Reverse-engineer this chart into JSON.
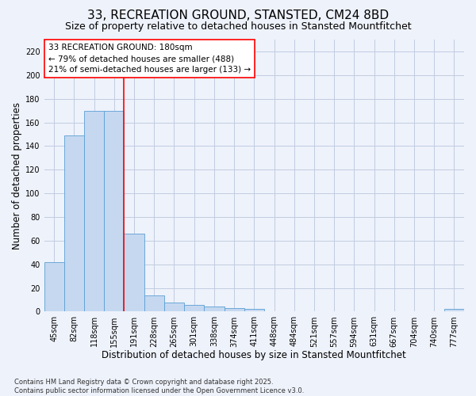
{
  "title": "33, RECREATION GROUND, STANSTED, CM24 8BD",
  "subtitle": "Size of property relative to detached houses in Stansted Mountfitchet",
  "xlabel": "Distribution of detached houses by size in Stansted Mountfitchet",
  "ylabel": "Number of detached properties",
  "categories": [
    "45sqm",
    "82sqm",
    "118sqm",
    "155sqm",
    "191sqm",
    "228sqm",
    "265sqm",
    "301sqm",
    "338sqm",
    "374sqm",
    "411sqm",
    "448sqm",
    "484sqm",
    "521sqm",
    "557sqm",
    "594sqm",
    "631sqm",
    "667sqm",
    "704sqm",
    "740sqm",
    "777sqm"
  ],
  "values": [
    42,
    149,
    170,
    170,
    66,
    14,
    8,
    6,
    4,
    3,
    2,
    0,
    0,
    0,
    0,
    0,
    0,
    0,
    0,
    0,
    2
  ],
  "bar_color": "#c5d8f0",
  "bar_edge_color": "#5a9fd4",
  "vline_x_index": 4,
  "vline_color": "red",
  "annotation_text": "33 RECREATION GROUND: 180sqm\n← 79% of detached houses are smaller (488)\n21% of semi-detached houses are larger (133) →",
  "annotation_box_color": "white",
  "annotation_box_edge": "red",
  "ylim": [
    0,
    230
  ],
  "yticks": [
    0,
    20,
    40,
    60,
    80,
    100,
    120,
    140,
    160,
    180,
    200,
    220
  ],
  "footer": "Contains HM Land Registry data © Crown copyright and database right 2025.\nContains public sector information licensed under the Open Government Licence v3.0.",
  "bg_color": "#eef2fb",
  "plot_bg_color": "#eef2fb",
  "grid_color": "#c0cce0",
  "title_fontsize": 11,
  "subtitle_fontsize": 9,
  "tick_fontsize": 7,
  "label_fontsize": 8.5,
  "footer_fontsize": 6,
  "annotation_fontsize": 7.5
}
